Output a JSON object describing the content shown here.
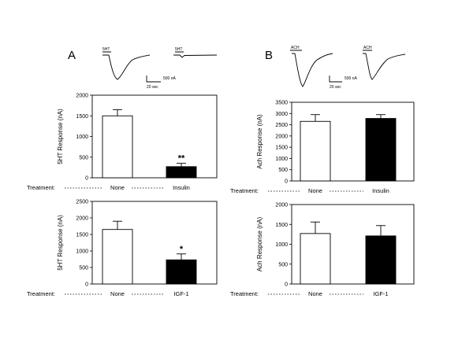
{
  "panels": [
    {
      "letter": "A",
      "traces": [
        {
          "label": "5HT",
          "kind": "large"
        },
        {
          "label": "5HT",
          "kind": "small"
        }
      ],
      "scale_bar": {
        "amplitude": "500 nA",
        "time": "20 sec"
      }
    },
    {
      "letter": "B",
      "traces": [
        {
          "label": "ACH",
          "kind": "large"
        },
        {
          "label": "ACH",
          "kind": "large"
        }
      ],
      "scale_bar": {
        "amplitude": "500 nA",
        "time": "20 sec"
      }
    }
  ],
  "treatment_label": "Treatment:",
  "chart_data": [
    {
      "type": "bar",
      "ylabel": "5HT Response (nA)",
      "categories": [
        "None",
        "Insulin"
      ],
      "values": [
        1500,
        270
      ],
      "errors": [
        150,
        80
      ],
      "fills": [
        "#ffffff",
        "#000000"
      ],
      "significance": [
        "",
        "**"
      ],
      "ylim": [
        0,
        2000
      ],
      "yticks": [
        0,
        500,
        1000,
        1500,
        2000
      ]
    },
    {
      "type": "bar",
      "ylabel": "5HT Response (nA)",
      "categories": [
        "None",
        "IGF-1"
      ],
      "values": [
        1650,
        730
      ],
      "errors": [
        250,
        180
      ],
      "fills": [
        "#ffffff",
        "#000000"
      ],
      "significance": [
        "",
        "*"
      ],
      "ylim": [
        0,
        2500
      ],
      "yticks": [
        0,
        500,
        1000,
        1500,
        2000,
        2500
      ]
    },
    {
      "type": "bar",
      "ylabel": "Ach Response (nA)",
      "categories": [
        "None",
        "Insulin"
      ],
      "values": [
        2650,
        2780
      ],
      "errors": [
        300,
        170
      ],
      "fills": [
        "#ffffff",
        "#000000"
      ],
      "significance": [
        "",
        ""
      ],
      "ylim": [
        0,
        3500
      ],
      "yticks": [
        0,
        500,
        1000,
        1500,
        2000,
        2500,
        3000,
        3500
      ]
    },
    {
      "type": "bar",
      "ylabel": "Ach Response (nA)",
      "categories": [
        "None",
        "IGF-1"
      ],
      "values": [
        1270,
        1210
      ],
      "errors": [
        290,
        260
      ],
      "fills": [
        "#ffffff",
        "#000000"
      ],
      "significance": [
        "",
        ""
      ],
      "ylim": [
        0,
        2000
      ],
      "yticks": [
        0,
        500,
        1000,
        1500,
        2000
      ]
    }
  ]
}
